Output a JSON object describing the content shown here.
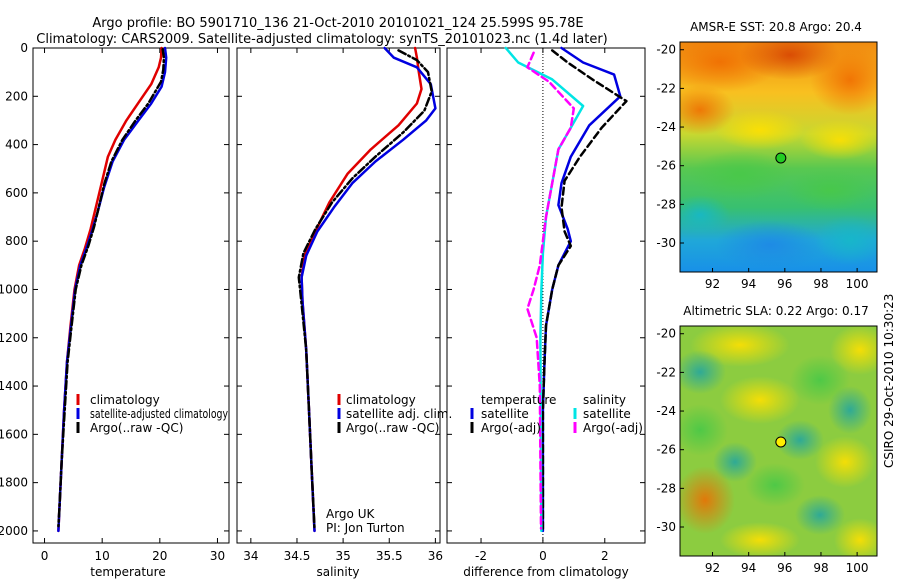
{
  "header": {
    "title_line1": "Argo profile: BO 5901710_136 21-Oct-2010 20101021_124 25.599S 95.78E",
    "title_line2": "Climatology: CARS2009. Satellite-adjusted climatology: synTS_20101023.nc (1.4d later)"
  },
  "side_label": "CSIRO 29-Oct-2010 10:30:23",
  "colors": {
    "red": "#e00000",
    "blue": "#0000e0",
    "black": "#000000",
    "cyan": "#00e5e5",
    "magenta": "#ff00ff"
  },
  "chart_data": [
    {
      "id": "temperature",
      "type": "line",
      "xlabel": "temperature",
      "xlim": [
        -2,
        32
      ],
      "ylim": [
        0,
        2050
      ],
      "y_reversed": true,
      "xticks": [
        0,
        10,
        20,
        30
      ],
      "xtick_labels": [
        "0",
        "10",
        "20",
        "30"
      ],
      "yticks": [
        0,
        200,
        400,
        600,
        800,
        1000,
        1200,
        1400,
        1600,
        1800,
        2000
      ],
      "ytick_labels": [
        "0",
        "200",
        "400",
        "600",
        "800",
        "1000",
        "1200",
        "1400",
        "1600",
        "1800",
        "2000"
      ],
      "legend": [
        "climatology",
        "satellite-adjusted climatology",
        "Argo(..raw -QC)"
      ],
      "series": [
        {
          "name": "climatology",
          "color": "#e00000",
          "dash": "solid",
          "points": [
            [
              20.3,
              0
            ],
            [
              20.2,
              40
            ],
            [
              19.8,
              80
            ],
            [
              18.5,
              150
            ],
            [
              16.5,
              220
            ],
            [
              14.2,
              300
            ],
            [
              12.3,
              380
            ],
            [
              11.0,
              450
            ],
            [
              10.0,
              550
            ],
            [
              9.0,
              650
            ],
            [
              8.0,
              750
            ],
            [
              7.0,
              830
            ],
            [
              6.0,
              900
            ],
            [
              5.2,
              1000
            ],
            [
              4.5,
              1150
            ],
            [
              3.9,
              1300
            ],
            [
              3.4,
              1500
            ],
            [
              3.0,
              1700
            ],
            [
              2.6,
              1900
            ],
            [
              2.4,
              2000
            ]
          ]
        },
        {
          "name": "satellite-adjusted climatology",
          "color": "#0000e0",
          "dash": "solid",
          "points": [
            [
              20.9,
              0
            ],
            [
              21.1,
              40
            ],
            [
              20.9,
              100
            ],
            [
              20.3,
              160
            ],
            [
              18.5,
              230
            ],
            [
              16.3,
              300
            ],
            [
              13.8,
              380
            ],
            [
              11.8,
              470
            ],
            [
              10.3,
              580
            ],
            [
              9.2,
              680
            ],
            [
              8.1,
              770
            ],
            [
              7.1,
              840
            ],
            [
              6.2,
              900
            ],
            [
              5.3,
              1000
            ],
            [
              4.6,
              1150
            ],
            [
              3.9,
              1300
            ],
            [
              3.4,
              1500
            ],
            [
              3.0,
              1700
            ],
            [
              2.6,
              1900
            ],
            [
              2.4,
              2000
            ]
          ]
        },
        {
          "name": "Argo(..raw -QC)",
          "color": "#000000",
          "dash": "dashdot",
          "points": [
            [
              20.5,
              5
            ],
            [
              20.7,
              40
            ],
            [
              20.6,
              90
            ],
            [
              20.2,
              140
            ],
            [
              18.0,
              230
            ],
            [
              15.8,
              300
            ],
            [
              13.5,
              380
            ],
            [
              11.6,
              470
            ],
            [
              10.4,
              560
            ],
            [
              9.5,
              650
            ],
            [
              8.6,
              740
            ],
            [
              7.6,
              820
            ],
            [
              6.4,
              900
            ],
            [
              5.4,
              1000
            ],
            [
              4.7,
              1150
            ],
            [
              4.0,
              1300
            ],
            [
              3.5,
              1500
            ],
            [
              3.0,
              1700
            ],
            [
              2.6,
              1900
            ],
            [
              2.4,
              1980
            ]
          ]
        }
      ]
    },
    {
      "id": "salinity",
      "type": "line",
      "xlabel": "salinity",
      "xlim": [
        33.85,
        36.05
      ],
      "ylim": [
        0,
        2050
      ],
      "y_reversed": true,
      "xticks": [
        34,
        34.5,
        35,
        35.5,
        36
      ],
      "xtick_labels": [
        "34",
        "34.5",
        "35",
        "35.5",
        "36"
      ],
      "legend": [
        "climatology",
        "satellite adj. clim.",
        "Argo(..raw -QC)"
      ],
      "annotation": [
        "Argo UK",
        "PI: Jon Turton"
      ],
      "series": [
        {
          "name": "climatology",
          "color": "#e00000",
          "dash": "solid",
          "points": [
            [
              35.78,
              0
            ],
            [
              35.8,
              40
            ],
            [
              35.82,
              100
            ],
            [
              35.85,
              170
            ],
            [
              35.8,
              230
            ],
            [
              35.6,
              320
            ],
            [
              35.3,
              420
            ],
            [
              35.05,
              520
            ],
            [
              34.85,
              640
            ],
            [
              34.7,
              760
            ],
            [
              34.58,
              860
            ],
            [
              34.55,
              950
            ],
            [
              34.56,
              1050
            ],
            [
              34.6,
              1250
            ],
            [
              34.63,
              1500
            ],
            [
              34.66,
              1750
            ],
            [
              34.69,
              2000
            ]
          ]
        },
        {
          "name": "satellite adj. clim.",
          "color": "#0000e0",
          "dash": "solid",
          "points": [
            [
              35.45,
              0
            ],
            [
              35.55,
              40
            ],
            [
              35.8,
              80
            ],
            [
              35.95,
              150
            ],
            [
              36.0,
              250
            ],
            [
              35.9,
              300
            ],
            [
              35.65,
              380
            ],
            [
              35.35,
              470
            ],
            [
              35.1,
              560
            ],
            [
              34.9,
              660
            ],
            [
              34.72,
              760
            ],
            [
              34.6,
              860
            ],
            [
              34.55,
              950
            ],
            [
              34.56,
              1050
            ],
            [
              34.6,
              1250
            ],
            [
              34.63,
              1500
            ],
            [
              34.66,
              1750
            ],
            [
              34.69,
              2000
            ]
          ]
        },
        {
          "name": "Argo(..raw -QC)",
          "color": "#000000",
          "dash": "dashdot",
          "points": [
            [
              35.6,
              10
            ],
            [
              35.8,
              50
            ],
            [
              35.92,
              100
            ],
            [
              35.96,
              180
            ],
            [
              35.88,
              260
            ],
            [
              35.65,
              350
            ],
            [
              35.35,
              450
            ],
            [
              35.1,
              540
            ],
            [
              34.88,
              640
            ],
            [
              34.7,
              750
            ],
            [
              34.57,
              850
            ],
            [
              34.52,
              950
            ],
            [
              34.55,
              1060
            ],
            [
              34.6,
              1250
            ],
            [
              34.63,
              1500
            ],
            [
              34.66,
              1750
            ],
            [
              34.69,
              1990
            ]
          ]
        }
      ]
    },
    {
      "id": "difference",
      "type": "line",
      "xlabel": "difference from climatology",
      "xlim": [
        -3.1,
        3.3
      ],
      "ylim": [
        0,
        2050
      ],
      "y_reversed": true,
      "xticks": [
        -2,
        0,
        2
      ],
      "xtick_labels": [
        "-2",
        "0",
        "2"
      ],
      "zero_line": 0,
      "legend_groups": [
        {
          "title": "temperature",
          "items": [
            "satellite",
            "Argo(-adj)"
          ]
        },
        {
          "title": "salinity",
          "items": [
            "satellite",
            "Argo(-adj)"
          ]
        }
      ],
      "series": [
        {
          "name": "temperature satellite",
          "color": "#0000e0",
          "dash": "solid",
          "points": [
            [
              0.6,
              0
            ],
            [
              1.3,
              60
            ],
            [
              2.3,
              110
            ],
            [
              2.5,
              200
            ],
            [
              1.5,
              320
            ],
            [
              0.9,
              450
            ],
            [
              0.6,
              560
            ],
            [
              0.5,
              650
            ],
            [
              0.8,
              750
            ],
            [
              0.9,
              800
            ],
            [
              0.5,
              900
            ],
            [
              0.3,
              1000
            ],
            [
              0.1,
              1150
            ],
            [
              0.05,
              1300
            ],
            [
              0.0,
              1500
            ],
            [
              0.0,
              1800
            ],
            [
              0.0,
              2000
            ]
          ]
        },
        {
          "name": "temperature Argo(-adj)",
          "color": "#000000",
          "dash": "dash",
          "points": [
            [
              0.3,
              10
            ],
            [
              0.8,
              60
            ],
            [
              1.6,
              130
            ],
            [
              2.7,
              220
            ],
            [
              1.9,
              330
            ],
            [
              1.2,
              450
            ],
            [
              0.7,
              550
            ],
            [
              0.6,
              660
            ],
            [
              0.7,
              760
            ],
            [
              0.9,
              820
            ],
            [
              0.5,
              900
            ],
            [
              0.3,
              1000
            ],
            [
              0.1,
              1150
            ],
            [
              0.05,
              1300
            ],
            [
              0.0,
              1500
            ],
            [
              0.0,
              1800
            ],
            [
              0.0,
              1990
            ]
          ]
        },
        {
          "name": "salinity satellite",
          "color": "#00e5e5",
          "dash": "solid",
          "points": [
            [
              -1.2,
              0
            ],
            [
              -0.8,
              60
            ],
            [
              0.3,
              130
            ],
            [
              1.3,
              240
            ],
            [
              0.9,
              330
            ],
            [
              0.5,
              420
            ],
            [
              0.3,
              560
            ],
            [
              0.1,
              700
            ],
            [
              0.0,
              850
            ],
            [
              -0.05,
              1000
            ],
            [
              -0.08,
              1200
            ],
            [
              -0.07,
              1500
            ],
            [
              -0.06,
              1800
            ],
            [
              -0.05,
              2000
            ]
          ]
        },
        {
          "name": "salinity Argo(-adj)",
          "color": "#ff00ff",
          "dash": "dash",
          "points": [
            [
              -0.3,
              20
            ],
            [
              -0.5,
              80
            ],
            [
              0.2,
              140
            ],
            [
              1.0,
              250
            ],
            [
              0.9,
              330
            ],
            [
              0.5,
              420
            ],
            [
              0.3,
              560
            ],
            [
              0.1,
              700
            ],
            [
              -0.1,
              900
            ],
            [
              -0.3,
              1000
            ],
            [
              -0.5,
              1080
            ],
            [
              -0.2,
              1200
            ],
            [
              -0.1,
              1400
            ],
            [
              -0.08,
              1700
            ],
            [
              -0.06,
              1990
            ]
          ]
        }
      ]
    }
  ],
  "maps": [
    {
      "id": "sst",
      "title": "AMSR-E SST: 20.8  Argo: 20.4",
      "xlim": [
        90.2,
        101.1
      ],
      "ylim": [
        -31.5,
        -19.6
      ],
      "xticks": [
        92,
        94,
        96,
        98,
        100
      ],
      "xtick_labels": [
        "92",
        "94",
        "96",
        "98",
        "100"
      ],
      "yticks": [
        -20,
        -22,
        -24,
        -26,
        -28,
        -30
      ],
      "ytick_labels": [
        "-20",
        "-22",
        "-24",
        "-26",
        "-28",
        "-30"
      ],
      "marker": {
        "lon": 95.78,
        "lat": -25.6,
        "fill": "#22cc22"
      }
    },
    {
      "id": "sla",
      "title": "Altimetric SLA: 0.22  Argo: 0.17",
      "xlim": [
        90.2,
        101.1
      ],
      "ylim": [
        -31.5,
        -19.6
      ],
      "xticks": [
        92,
        94,
        96,
        98,
        100
      ],
      "xtick_labels": [
        "92",
        "94",
        "96",
        "98",
        "100"
      ],
      "yticks": [
        -20,
        -22,
        -24,
        -26,
        -28,
        -30
      ],
      "ytick_labels": [
        "-20",
        "-22",
        "-24",
        "-26",
        "-28",
        "-30"
      ],
      "marker": {
        "lon": 95.78,
        "lat": -25.6,
        "fill": "#ffee00"
      }
    }
  ]
}
